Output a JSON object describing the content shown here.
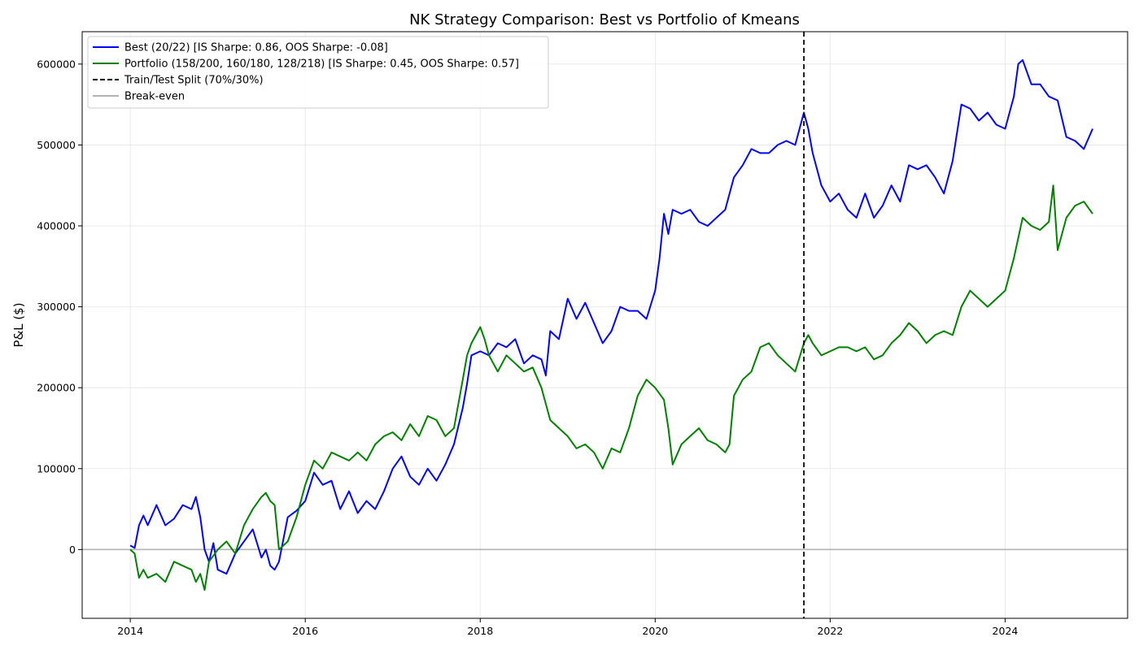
{
  "chart_data": {
    "type": "line",
    "title": "NK Strategy Comparison: Best vs Portfolio of Kmeans",
    "xlabel": "",
    "ylabel": "P&L ($)",
    "xlim": [
      2013.45,
      2025.4
    ],
    "ylim": [
      -85000,
      640000
    ],
    "grid": true,
    "legend_position": "top-left",
    "x_ticks": [
      2014,
      2016,
      2018,
      2020,
      2022,
      2024
    ],
    "x_tick_labels": [
      "2014",
      "2016",
      "2018",
      "2020",
      "2022",
      "2024"
    ],
    "y_ticks": [
      0,
      100000,
      200000,
      300000,
      400000,
      500000,
      600000
    ],
    "y_tick_labels": [
      "0",
      "100000",
      "200000",
      "300000",
      "400000",
      "500000",
      "600000"
    ],
    "split_x": 2021.7,
    "break_even_y": 0,
    "series": [
      {
        "name": "Best (20/22) [IS Sharpe: 0.86, OOS Sharpe: -0.08]",
        "color": "#0000ff",
        "style": "solid",
        "x": [
          2014.0,
          2014.05,
          2014.1,
          2014.15,
          2014.2,
          2014.3,
          2014.4,
          2014.5,
          2014.6,
          2014.7,
          2014.75,
          2014.8,
          2014.85,
          2014.9,
          2014.95,
          2015.0,
          2015.1,
          2015.2,
          2015.3,
          2015.4,
          2015.5,
          2015.55,
          2015.6,
          2015.65,
          2015.7,
          2015.8,
          2015.9,
          2016.0,
          2016.1,
          2016.2,
          2016.3,
          2016.4,
          2016.5,
          2016.6,
          2016.7,
          2016.8,
          2016.9,
          2017.0,
          2017.1,
          2017.2,
          2017.3,
          2017.4,
          2017.5,
          2017.6,
          2017.7,
          2017.8,
          2017.85,
          2017.9,
          2018.0,
          2018.1,
          2018.2,
          2018.3,
          2018.4,
          2018.5,
          2018.6,
          2018.7,
          2018.75,
          2018.8,
          2018.9,
          2019.0,
          2019.1,
          2019.2,
          2019.3,
          2019.4,
          2019.5,
          2019.6,
          2019.7,
          2019.8,
          2019.9,
          2020.0,
          2020.05,
          2020.1,
          2020.15,
          2020.2,
          2020.3,
          2020.4,
          2020.5,
          2020.6,
          2020.7,
          2020.8,
          2020.9,
          2021.0,
          2021.1,
          2021.2,
          2021.3,
          2021.4,
          2021.5,
          2021.6,
          2021.7,
          2021.75,
          2021.8,
          2021.9,
          2022.0,
          2022.1,
          2022.2,
          2022.3,
          2022.4,
          2022.5,
          2022.6,
          2022.7,
          2022.8,
          2022.9,
          2023.0,
          2023.1,
          2023.2,
          2023.3,
          2023.4,
          2023.5,
          2023.6,
          2023.7,
          2023.8,
          2023.9,
          2024.0,
          2024.1,
          2024.15,
          2024.2,
          2024.3,
          2024.4,
          2024.5,
          2024.6,
          2024.7,
          2024.8,
          2024.9,
          2025.0
        ],
        "values": [
          5000,
          2000,
          30000,
          42000,
          30000,
          55000,
          30000,
          38000,
          55000,
          50000,
          65000,
          40000,
          0,
          -15000,
          8000,
          -25000,
          -30000,
          -5000,
          10000,
          25000,
          -10000,
          0,
          -20000,
          -25000,
          -15000,
          40000,
          48000,
          60000,
          95000,
          80000,
          85000,
          50000,
          72000,
          45000,
          60000,
          50000,
          72000,
          100000,
          115000,
          90000,
          80000,
          100000,
          85000,
          105000,
          130000,
          175000,
          205000,
          240000,
          245000,
          240000,
          255000,
          250000,
          260000,
          230000,
          240000,
          235000,
          215000,
          270000,
          260000,
          310000,
          285000,
          305000,
          280000,
          255000,
          270000,
          300000,
          295000,
          295000,
          285000,
          320000,
          360000,
          415000,
          390000,
          420000,
          415000,
          420000,
          405000,
          400000,
          410000,
          420000,
          460000,
          475000,
          495000,
          490000,
          490000,
          500000,
          505000,
          500000,
          540000,
          520000,
          490000,
          450000,
          430000,
          440000,
          420000,
          410000,
          440000,
          410000,
          425000,
          450000,
          430000,
          475000,
          470000,
          475000,
          460000,
          440000,
          480000,
          550000,
          545000,
          530000,
          540000,
          525000,
          520000,
          560000,
          600000,
          605000,
          575000,
          575000,
          560000,
          555000,
          510000,
          505000,
          495000,
          520000
        ]
      },
      {
        "name": "Portfolio (158/200, 160/180, 128/218) [IS Sharpe: 0.45, OOS Sharpe: 0.57]",
        "color": "#008000",
        "style": "solid",
        "x": [
          2014.0,
          2014.05,
          2014.1,
          2014.15,
          2014.2,
          2014.3,
          2014.4,
          2014.5,
          2014.6,
          2014.7,
          2014.75,
          2014.8,
          2014.85,
          2014.9,
          2015.0,
          2015.1,
          2015.2,
          2015.3,
          2015.4,
          2015.5,
          2015.55,
          2015.6,
          2015.65,
          2015.7,
          2015.8,
          2015.9,
          2016.0,
          2016.1,
          2016.2,
          2016.3,
          2016.4,
          2016.5,
          2016.6,
          2016.7,
          2016.8,
          2016.9,
          2017.0,
          2017.1,
          2017.2,
          2017.3,
          2017.4,
          2017.5,
          2017.6,
          2017.7,
          2017.8,
          2017.85,
          2017.9,
          2018.0,
          2018.05,
          2018.1,
          2018.2,
          2018.3,
          2018.4,
          2018.5,
          2018.6,
          2018.7,
          2018.8,
          2018.9,
          2019.0,
          2019.1,
          2019.2,
          2019.3,
          2019.4,
          2019.5,
          2019.6,
          2019.7,
          2019.8,
          2019.9,
          2020.0,
          2020.1,
          2020.15,
          2020.2,
          2020.3,
          2020.4,
          2020.5,
          2020.6,
          2020.7,
          2020.8,
          2020.85,
          2020.9,
          2021.0,
          2021.1,
          2021.2,
          2021.3,
          2021.4,
          2021.5,
          2021.6,
          2021.7,
          2021.75,
          2021.8,
          2021.9,
          2022.0,
          2022.1,
          2022.2,
          2022.3,
          2022.4,
          2022.5,
          2022.6,
          2022.7,
          2022.8,
          2022.9,
          2023.0,
          2023.1,
          2023.2,
          2023.3,
          2023.4,
          2023.5,
          2023.6,
          2023.7,
          2023.8,
          2023.9,
          2024.0,
          2024.1,
          2024.2,
          2024.3,
          2024.4,
          2024.5,
          2024.55,
          2024.6,
          2024.7,
          2024.8,
          2024.9,
          2025.0
        ],
        "values": [
          0,
          -5000,
          -35000,
          -25000,
          -35000,
          -30000,
          -40000,
          -15000,
          -20000,
          -25000,
          -40000,
          -30000,
          -50000,
          -15000,
          0,
          10000,
          -5000,
          30000,
          50000,
          65000,
          70000,
          60000,
          55000,
          0,
          10000,
          40000,
          80000,
          110000,
          100000,
          120000,
          115000,
          110000,
          120000,
          110000,
          130000,
          140000,
          145000,
          135000,
          155000,
          140000,
          165000,
          160000,
          140000,
          150000,
          210000,
          240000,
          255000,
          275000,
          260000,
          240000,
          220000,
          240000,
          230000,
          220000,
          225000,
          200000,
          160000,
          150000,
          140000,
          125000,
          130000,
          120000,
          100000,
          125000,
          120000,
          150000,
          190000,
          210000,
          200000,
          185000,
          150000,
          105000,
          130000,
          140000,
          150000,
          135000,
          130000,
          120000,
          130000,
          190000,
          210000,
          220000,
          250000,
          255000,
          240000,
          230000,
          220000,
          255000,
          265000,
          255000,
          240000,
          245000,
          250000,
          250000,
          245000,
          250000,
          235000,
          240000,
          255000,
          265000,
          280000,
          270000,
          255000,
          265000,
          270000,
          265000,
          300000,
          320000,
          310000,
          300000,
          310000,
          320000,
          360000,
          410000,
          400000,
          395000,
          405000,
          450000,
          370000,
          410000,
          425000,
          430000,
          415000
        ]
      }
    ],
    "legend": [
      {
        "label": "Best (20/22) [IS Sharpe: 0.86, OOS Sharpe: -0.08]",
        "color": "#0000ff",
        "style": "solid"
      },
      {
        "label": "Portfolio (158/200, 160/180, 128/218) [IS Sharpe: 0.45, OOS Sharpe: 0.57]",
        "color": "#008000",
        "style": "solid"
      },
      {
        "label": "Train/Test Split (70%/30%)",
        "color": "#000000",
        "style": "dashed"
      },
      {
        "label": "Break-even",
        "color": "#b3b3b3",
        "style": "solid"
      }
    ]
  }
}
